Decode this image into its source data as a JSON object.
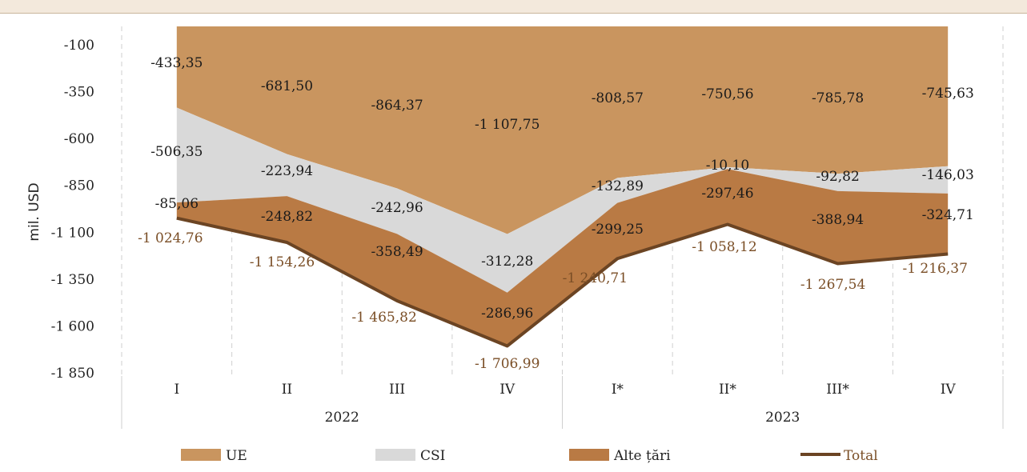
{
  "title": "",
  "chart_data": {
    "type": "area",
    "ylabel": "mil. USD",
    "ylim": [
      -1850,
      -100
    ],
    "yticks": [
      "-100",
      "-350",
      "-600",
      "-850",
      "-1 100",
      "-1 350",
      "-1 600",
      "-1 850"
    ],
    "categories": [
      "I",
      "II",
      "III",
      "IV",
      "I*",
      "II*",
      "III*",
      "IV"
    ],
    "groups": [
      {
        "label": "2022",
        "count": 4
      },
      {
        "label": "2023",
        "count": 4
      }
    ],
    "series": [
      {
        "name": "UE",
        "kind": "area",
        "color": "#c9955f",
        "values": [
          -433.35,
          -681.5,
          -864.37,
          -1107.75,
          -808.57,
          -750.56,
          -785.78,
          -745.63
        ],
        "labels": [
          "-433,35",
          "-681,50",
          "-864,37",
          "-1 107,75",
          "-808,57",
          "-750,56",
          "-785,78",
          "-745,63"
        ]
      },
      {
        "name": "CSI",
        "kind": "area",
        "color": "#d9d9d9",
        "values": [
          -506.35,
          -223.94,
          -242.96,
          -312.28,
          -132.89,
          -10.1,
          -92.82,
          -146.03
        ],
        "labels": [
          "-506,35",
          "-223,94",
          "-242,96",
          "-312,28",
          "-132,89",
          "-10,10",
          "-92,82",
          "-146,03"
        ]
      },
      {
        "name": "Alte țări",
        "kind": "area",
        "color": "#b97a44",
        "values": [
          -85.06,
          -248.82,
          -358.49,
          -286.96,
          -299.25,
          -297.46,
          -388.94,
          -324.71
        ],
        "labels": [
          "-85,06",
          "-248,82",
          "-358,49",
          "-286,96",
          "-299,25",
          "-297,46",
          "-388,94",
          "-324,71"
        ]
      },
      {
        "name": "Total",
        "kind": "line",
        "color": "#6b4423",
        "values": [
          -1024.76,
          -1154.26,
          -1465.82,
          -1706.99,
          -1240.71,
          -1058.12,
          -1267.54,
          -1216.37
        ],
        "labels": [
          "-1 024,76",
          "-1 154,26",
          "-1 465,82",
          "-1 706,99",
          "-1 240,71",
          "-1 058,12",
          "-1 267,54",
          "-1 216,37"
        ]
      }
    ],
    "grid": "vertical-dashed",
    "legend": "bottom"
  }
}
